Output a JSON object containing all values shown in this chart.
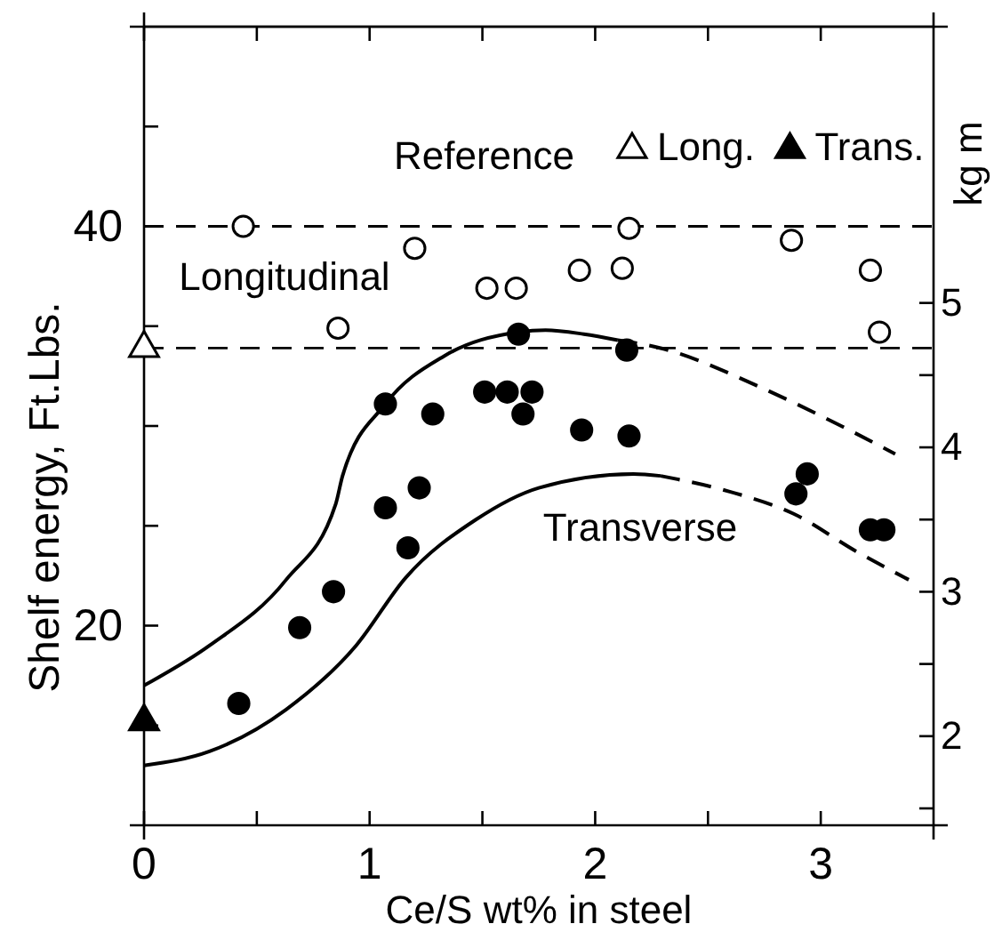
{
  "chart_data": {
    "type": "scatter",
    "xlabel": "Ce/S wt% in steel",
    "ylabel": "Shelf energy, Ft.Lbs.",
    "y2label": "kg m",
    "legend_title": "Reference",
    "legend": "top right",
    "xlim": [
      0,
      3.5
    ],
    "xticks": [
      0,
      {
        "value": 0.5,
        "label": null
      },
      1,
      {
        "value": 1.5,
        "label": null
      },
      2,
      {
        "value": 2.5,
        "label": null
      },
      3
    ],
    "ylim": [
      10,
      50
    ],
    "yticks": [
      {
        "value": 15,
        "label": null
      },
      20,
      {
        "value": 25,
        "label": null
      },
      {
        "value": 30,
        "label": null
      },
      {
        "value": 35,
        "label": null
      },
      40,
      {
        "value": 45,
        "label": null
      }
    ],
    "y2lim": [
      1.383,
      6.913
    ],
    "y2ticks": [
      {
        "value": 1.5,
        "label": null
      },
      2,
      {
        "value": 2.5,
        "label": null
      },
      3,
      {
        "value": 3.5,
        "label": null
      },
      4,
      {
        "value": 4.5,
        "label": null
      },
      5
    ],
    "grid": false,
    "ref_lines": [
      {
        "axis": "y",
        "value": 40,
        "line_style": "dashed"
      },
      {
        "axis": "y",
        "value": 33.9,
        "line_style": "dashed"
      }
    ],
    "annotations": [
      "Longitudinal",
      "Transverse"
    ],
    "series": [
      {
        "type": "scatter",
        "marker": "circle",
        "color": "#ffffff",
        "x": [
          0.44,
          1.2,
          0.86,
          1.52,
          1.65,
          1.93,
          2.12,
          2.15,
          2.87,
          3.22,
          3.26
        ],
        "values": [
          40.0,
          38.9,
          34.9,
          36.9,
          36.9,
          37.8,
          37.9,
          39.9,
          39.3,
          37.8,
          34.7
        ]
      },
      {
        "type": "scatter",
        "marker": "circle",
        "color": "#000000",
        "x": [
          1.66,
          2.14,
          1.07,
          1.28,
          1.51,
          1.61,
          1.72,
          1.68,
          1.94,
          2.15,
          2.94,
          2.89,
          3.22,
          3.28,
          1.22,
          1.07,
          1.17,
          0.84,
          0.69,
          0.42
        ],
        "values": [
          34.6,
          33.8,
          31.1,
          30.6,
          31.7,
          31.7,
          31.7,
          30.6,
          29.8,
          29.5,
          27.6,
          26.6,
          24.8,
          24.8,
          26.9,
          25.9,
          23.9,
          21.7,
          19.9,
          16.1
        ]
      },
      {
        "type": "scatter",
        "name": "Long.",
        "marker": "triangle",
        "color": "#ffffff",
        "x": [
          0
        ],
        "values": [
          33.9
        ]
      },
      {
        "type": "scatter",
        "name": "Trans.",
        "marker": "triangle",
        "color": "#000000",
        "x": [
          0
        ],
        "values": [
          15.2
        ]
      },
      {
        "type": "line",
        "line_style": "solid",
        "color": "#000000",
        "x": [
          0,
          0.29,
          0.63,
          0.85,
          0.88,
          1.07,
          1.33,
          1.66,
          1.78,
          1.95,
          2.1
        ],
        "values": [
          17.0,
          19.0,
          22.3,
          26.1,
          27.5,
          31.1,
          33.5,
          34.7,
          34.8,
          34.6,
          34.3
        ]
      },
      {
        "type": "line",
        "line_style": "dashed",
        "color": "#000000",
        "x": [
          2.1,
          2.29,
          2.74,
          3.02,
          3.33
        ],
        "values": [
          34.3,
          33.9,
          31.9,
          30.4,
          28.6
        ]
      },
      {
        "type": "line",
        "line_style": "solid",
        "color": "#000000",
        "x": [
          0,
          0.29,
          0.63,
          0.94,
          1.16,
          1.47,
          1.75,
          2.17,
          2.29
        ],
        "values": [
          13.0,
          13.7,
          15.8,
          19.0,
          22.4,
          25.3,
          26.9,
          27.6,
          27.5
        ]
      },
      {
        "type": "line",
        "line_style": "dashed",
        "color": "#000000",
        "x": [
          2.29,
          2.6,
          2.88,
          3.16,
          3.39
        ],
        "values": [
          27.5,
          26.7,
          25.6,
          23.7,
          22.3
        ]
      }
    ]
  }
}
